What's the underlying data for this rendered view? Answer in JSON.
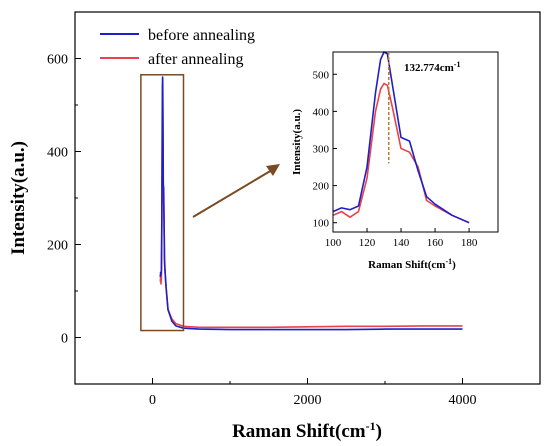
{
  "chart_data": {
    "type": "line",
    "xlabel": "Raman Shift(cm",
    "xlabel_sup": "-1",
    "ylabel": "Intensity(a.u.)",
    "xlim": [
      -1000,
      5000
    ],
    "ylim": [
      -100,
      700
    ],
    "xticks": [
      0,
      2000,
      4000
    ],
    "yticks": [
      0,
      200,
      400,
      600
    ],
    "legend_position": "top-left",
    "series": [
      {
        "name": "before annealing",
        "color": "#1f1fc8",
        "x": [
          100,
          105,
          110,
          115,
          120,
          125,
          128,
          130,
          132,
          135,
          140,
          145,
          150,
          155,
          160,
          170,
          180,
          200,
          250,
          300,
          400,
          600,
          1000,
          1500,
          2000,
          2500,
          3000,
          3500,
          4000
        ],
        "y": [
          130,
          140,
          135,
          145,
          250,
          450,
          540,
          560,
          555,
          470,
          330,
          320,
          240,
          170,
          150,
          120,
          100,
          60,
          35,
          25,
          20,
          18,
          17,
          17,
          17,
          17,
          18,
          18,
          18
        ]
      },
      {
        "name": "after annealing",
        "color": "#e8424a",
        "x": [
          100,
          105,
          110,
          115,
          120,
          125,
          128,
          130,
          132,
          135,
          140,
          145,
          150,
          155,
          160,
          170,
          180,
          200,
          250,
          300,
          400,
          600,
          1000,
          1500,
          2000,
          2500,
          3000,
          3500,
          4000
        ],
        "y": [
          120,
          130,
          115,
          130,
          220,
          400,
          460,
          475,
          470,
          410,
          300,
          290,
          250,
          160,
          145,
          120,
          100,
          60,
          40,
          30,
          24,
          22,
          22,
          22,
          23,
          24,
          24,
          25,
          25
        ]
      }
    ],
    "inset": {
      "xlabel": "Raman Shift(cm",
      "xlabel_sup": "-1",
      "ylabel": "Intensity(a.u.)",
      "xlim": [
        100,
        197
      ],
      "ylim": [
        75,
        560
      ],
      "xticks": [
        100,
        120,
        140,
        160,
        180
      ],
      "yticks": [
        100,
        200,
        300,
        400,
        500
      ],
      "peak_label": "132.774cm",
      "peak_label_sup": "-1",
      "peak_x": 132.774
    },
    "zoom_box_x": [
      -150,
      400
    ],
    "zoom_box_y": [
      15,
      565
    ]
  }
}
